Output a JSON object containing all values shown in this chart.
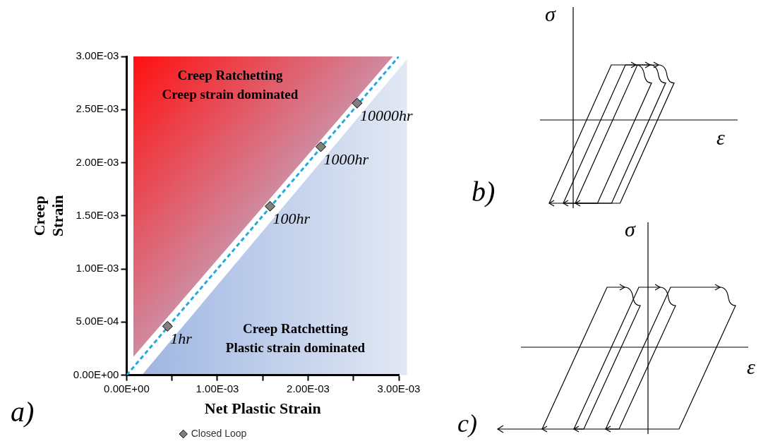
{
  "chart_data": {
    "type": "scatter",
    "xlabel": "Net Plastic Strain",
    "ylabel": "Creep Strain",
    "xlim": [
      0,
      0.003
    ],
    "ylim": [
      0,
      0.003
    ],
    "xticks": [
      {
        "value": 0,
        "label": "0.00E+00"
      },
      {
        "value": 0.0005,
        "label": null
      },
      {
        "value": 0.001,
        "label": "1.00E-03"
      },
      {
        "value": 0.0015,
        "label": null
      },
      {
        "value": 0.002,
        "label": "2.00E-03"
      },
      {
        "value": 0.0025,
        "label": null
      },
      {
        "value": 0.003,
        "label": "3.00E-03"
      }
    ],
    "yticks": [
      {
        "value": 0,
        "label": "0.00E+00"
      },
      {
        "value": 0.0005,
        "label": "5.00E-04"
      },
      {
        "value": 0.001,
        "label": "1.00E-03"
      },
      {
        "value": 0.0015,
        "label": "1.50E-03"
      },
      {
        "value": 0.002,
        "label": "2.00E-03"
      },
      {
        "value": 0.0025,
        "label": "2.50E-03"
      },
      {
        "value": 0.003,
        "label": "3.00E-03"
      }
    ],
    "grid": false,
    "legend": "bottom",
    "series": [
      {
        "type": "line",
        "color": "#22aadd",
        "line_style": "dashed",
        "marker": "none",
        "x": [
          0,
          0.003
        ],
        "values": [
          0,
          0.003
        ]
      },
      {
        "type": "scatter",
        "name": "Closed Loop",
        "color": "#808080",
        "marker": "diamond",
        "x": [
          0.00045,
          0.00158,
          0.00214,
          0.00254
        ],
        "values": [
          0.00046,
          0.00159,
          0.00215,
          0.00256
        ]
      }
    ],
    "annotations": [
      "Creep Ratchetting\nCreep strain dominated",
      "Creep Ratchetting\nPlastic strain dominated",
      {
        "text": "1hr",
        "x": 0.00045,
        "y": 0.00046
      },
      {
        "text": "100hr",
        "x": 0.00158,
        "y": 0.00159
      },
      {
        "text": "1000hr",
        "x": 0.00214,
        "y": 0.00215
      },
      {
        "text": "10000hr",
        "x": 0.00254,
        "y": 0.00256
      },
      "a)",
      "b)",
      "c)",
      "σ",
      "ε",
      "σ",
      "ε"
    ]
  }
}
